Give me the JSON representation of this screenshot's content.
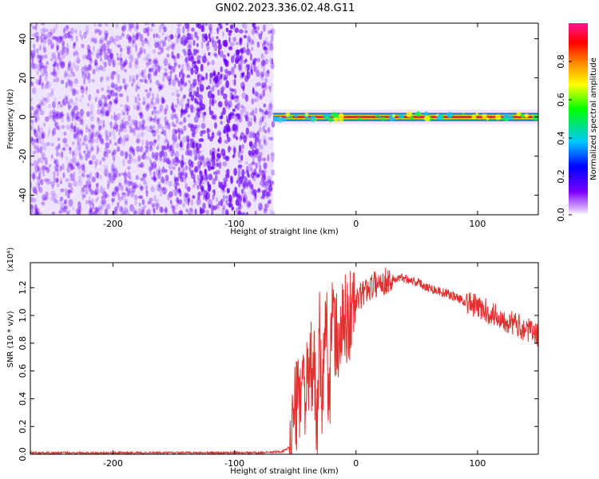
{
  "figure_title": "GN02.2023.336.02.48.G11",
  "colors": {
    "scatter": "#6a00ff",
    "signal_band": "#e5274f",
    "snr_line": "#e53030",
    "axis": "#000000",
    "colorbar": [
      "#ffffff",
      "#7b00ff",
      "#0000ff",
      "#00c8ff",
      "#00ff00",
      "#ffff00",
      "#ff8000",
      "#ff0000",
      "#ff1493"
    ]
  },
  "chart_data": [
    {
      "type": "heatmap",
      "xlabel": "Height of straight line (km)",
      "ylabel": "Frequency (Hz)",
      "xlim": [
        -268,
        150
      ],
      "ylim": [
        -50,
        48
      ],
      "xticks": [
        -200,
        -100,
        0,
        100
      ],
      "xtick_labels": [
        "-200",
        "-100",
        "0",
        "100"
      ],
      "yticks": [
        -40,
        -20,
        0,
        20,
        40
      ],
      "ytick_labels": [
        "-40",
        "-20",
        "0",
        "20",
        "40"
      ],
      "noise_region_x": [
        -268,
        -68
      ],
      "signal_band": {
        "x_start": -68,
        "x_end": 150,
        "frequency": 0
      },
      "colorbar": {
        "label": "Normalized spectral amplitude",
        "range": [
          0,
          1
        ],
        "ticks": [
          0,
          0.2,
          0.4,
          0.6,
          0.8
        ],
        "tick_labels": [
          "0.0",
          "0.2",
          "0.4",
          "0.6",
          "0.8"
        ]
      }
    },
    {
      "type": "line",
      "xlabel": "Height of straight line (km)",
      "ylabel": "SNR (10 * v/v)",
      "y_multiplier": "(x10⁴)",
      "xlim": [
        -268,
        150
      ],
      "ylim": [
        0,
        1.38
      ],
      "xticks": [
        -200,
        -100,
        0,
        100
      ],
      "xtick_labels": [
        "-200",
        "-100",
        "0",
        "100"
      ],
      "yticks": [
        0,
        0.2,
        0.4,
        0.6,
        0.8,
        1.0,
        1.2
      ],
      "ytick_labels": [
        "0.0",
        "0.2",
        "0.4",
        "0.6",
        "0.8",
        "1.0",
        "1.2"
      ],
      "series": [
        {
          "x": [
            -268,
            -150,
            -80,
            -60,
            -55,
            -52,
            -50,
            -48,
            -45,
            -40,
            -35,
            -32,
            -30,
            -28,
            -25,
            -22,
            -20,
            -15,
            -10,
            -5,
            0,
            5,
            10,
            15,
            20,
            25,
            30,
            40,
            50,
            60,
            70,
            80,
            90,
            100,
            110,
            120,
            130,
            140,
            150
          ],
          "values": [
            0.01,
            0.01,
            0.01,
            0.02,
            0.05,
            0.22,
            0.3,
            0.38,
            0.55,
            0.45,
            0.7,
            0.1,
            0.9,
            0.3,
            1.05,
            0.4,
            0.95,
            0.8,
            0.95,
            1.0,
            1.1,
            1.15,
            1.2,
            1.22,
            1.24,
            1.25,
            1.26,
            1.27,
            1.24,
            1.2,
            1.17,
            1.14,
            1.1,
            1.06,
            1.02,
            0.98,
            0.94,
            0.9,
            0.86
          ]
        }
      ]
    }
  ]
}
